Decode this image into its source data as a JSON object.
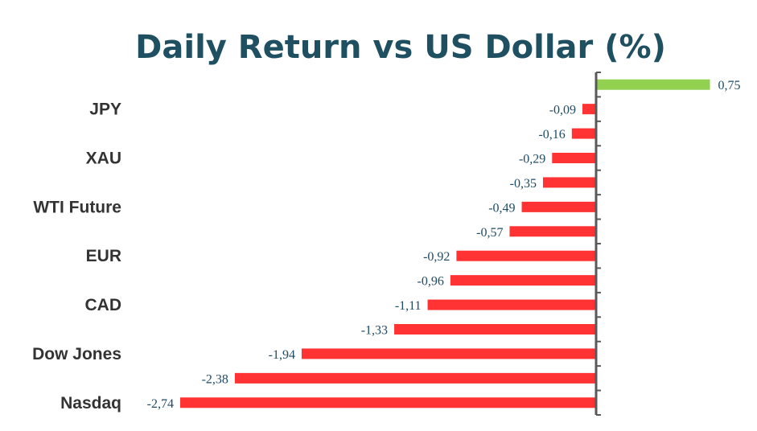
{
  "chart_data": {
    "type": "bar",
    "orientation": "horizontal",
    "title": "Daily Return vs US Dollar (%)",
    "xlabel": "",
    "ylabel": "",
    "categories": [
      "",
      "JPY",
      "",
      "XAU",
      "",
      "WTI Future",
      "",
      "EUR",
      "",
      "CAD",
      "",
      "Dow Jones",
      "",
      "Nasdaq"
    ],
    "values": [
      0.75,
      -0.09,
      -0.16,
      -0.29,
      -0.35,
      -0.49,
      -0.57,
      -0.92,
      -0.96,
      -1.11,
      -1.33,
      -1.94,
      -2.38,
      -2.74
    ],
    "value_labels": [
      "0,75",
      "-0,09",
      "-0,16",
      "-0,29",
      "-0,35",
      "-0,49",
      "-0,57",
      "-0,92",
      "-0,96",
      "-1,11",
      "-1,33",
      "-1,94",
      "-2,38",
      "-2,74"
    ],
    "xlim": [
      -2.74,
      0.75
    ],
    "grid": false,
    "colors": {
      "positive": "#92d050",
      "negative": "#ff3333",
      "axis": "#595959"
    }
  }
}
